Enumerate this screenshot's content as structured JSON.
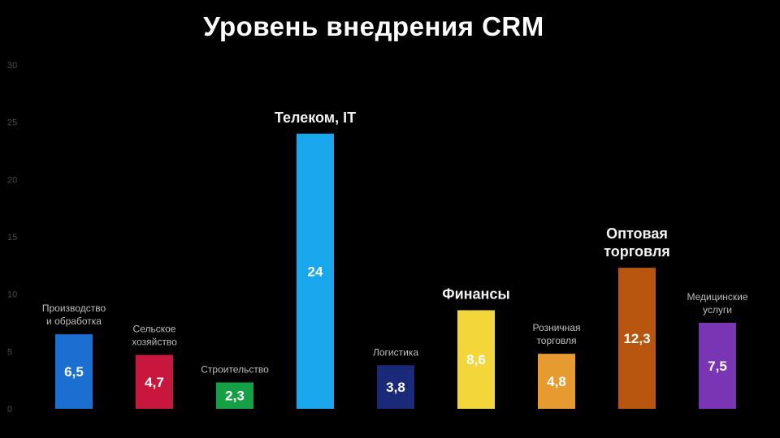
{
  "chart_data": {
    "type": "bar",
    "title": "Уровень внедрения CRM",
    "xlabel": "",
    "ylabel": "",
    "ylim": [
      0,
      30
    ],
    "yticks": [
      "0",
      "5",
      "10",
      "15",
      "20",
      "25",
      "30"
    ],
    "grid": false,
    "categories": [
      "Производство и обработка",
      "Сельское хозяйство",
      "Строительство",
      "Телеком, IT",
      "Логистика",
      "Финансы",
      "Розничная торговля",
      "Оптовая торговля",
      "Медицинские услуги"
    ],
    "values": [
      6.5,
      4.7,
      2.3,
      24,
      3.8,
      8.6,
      4.8,
      12.3,
      7.5
    ],
    "value_labels": [
      "6,5",
      "4,7",
      "2,3",
      "24",
      "3,8",
      "8,6",
      "4,8",
      "12,3",
      "7,5"
    ],
    "category_label_lines": [
      [
        "Производство",
        "и обработка"
      ],
      [
        "Сельское",
        "хозяйство"
      ],
      [
        "Строительство"
      ],
      [
        "Телеком, IT"
      ],
      [
        "Логистика"
      ],
      [
        "Финансы"
      ],
      [
        "Розничная",
        "торговля"
      ],
      [
        "Оптовая",
        "торговля"
      ],
      [
        "Медицинские",
        "услуги"
      ]
    ],
    "emphasized": [
      false,
      false,
      false,
      true,
      false,
      true,
      false,
      true,
      false
    ],
    "colors": [
      "#1a6fd0",
      "#c8173c",
      "#16a046",
      "#18a6ec",
      "#1b2a78",
      "#f2d63a",
      "#e79a30",
      "#b8560f",
      "#7a35b5"
    ]
  }
}
